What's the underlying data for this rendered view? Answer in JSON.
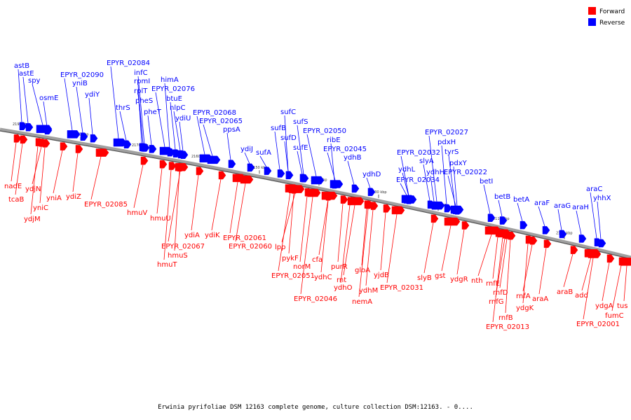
{
  "legend": {
    "forward": {
      "label": "Forward",
      "color": "#ff0000"
    },
    "reverse": {
      "label": "Reverse",
      "color": "#0000ff"
    }
  },
  "caption": "Erwinia pyrifoliae DSM 12163 complete genome, culture collection DSM:12163. - 0....",
  "ticks": [
    "2190 kbp",
    "2180 kbp",
    "2170 kbp",
    "2160 kbp",
    "2150 kbp",
    "2140 kbp",
    "2130 kbp",
    "2120 kbp",
    "2110 kbp",
    "2100 kbp"
  ],
  "genes_reverse": [
    "astB",
    "astE",
    "spy",
    "osmE",
    "EPYR_02090",
    "yniB",
    "ydiY",
    "EPYR_02084",
    "infC",
    "rpmI",
    "rplT",
    "thrS",
    "pheS",
    "himA",
    "EPYR_02076",
    "pheT",
    "btuE",
    "nlpC",
    "ydiU",
    "EPYR_02068",
    "EPYR_02065",
    "ppsA",
    "ydiJ",
    "sufA",
    "sufC",
    "sufB",
    "sufS",
    "sufD",
    "sufE",
    "EPYR_02050",
    "ribE",
    "EPYR_02045",
    "ydhB",
    "ydhD",
    "EPYR_02032",
    "ydhL",
    "EPYR_02034",
    "EPYR_02027",
    "slyA",
    "ydhH",
    "pdxH",
    "tyrS",
    "pdxY",
    "EPYR_02022",
    "betI",
    "betB",
    "betA",
    "araF",
    "araG",
    "araH",
    "araC",
    "yhhX"
  ],
  "genes_forward": [
    "nadE",
    "tcaB",
    "ydjN",
    "yniC",
    "ydjM",
    "yniA",
    "ydiZ",
    "EPYR_02085",
    "hmuV",
    "hmuU",
    "ydiA",
    "EPYR_02067",
    "hmuS",
    "hmuT",
    "ydiK",
    "EPYR_02061",
    "EPYR_02060",
    "lpp",
    "pykF",
    "norM",
    "EPYR_02051",
    "cfa",
    "ydhC",
    "EPYR_02046",
    "purR",
    "rnt",
    "ydhO",
    "gloA",
    "ydhM",
    "nemA",
    "yjdB",
    "EPYR_02031",
    "slyB",
    "gst",
    "ydgR",
    "nth",
    "rnfE",
    "rnfD",
    "rnfG",
    "rnfB",
    "EPYR_02013",
    "rnfA",
    "ydgK",
    "araA",
    "araB",
    "add",
    "ydgA",
    "fumC",
    "tus",
    "EPYR_02001"
  ]
}
